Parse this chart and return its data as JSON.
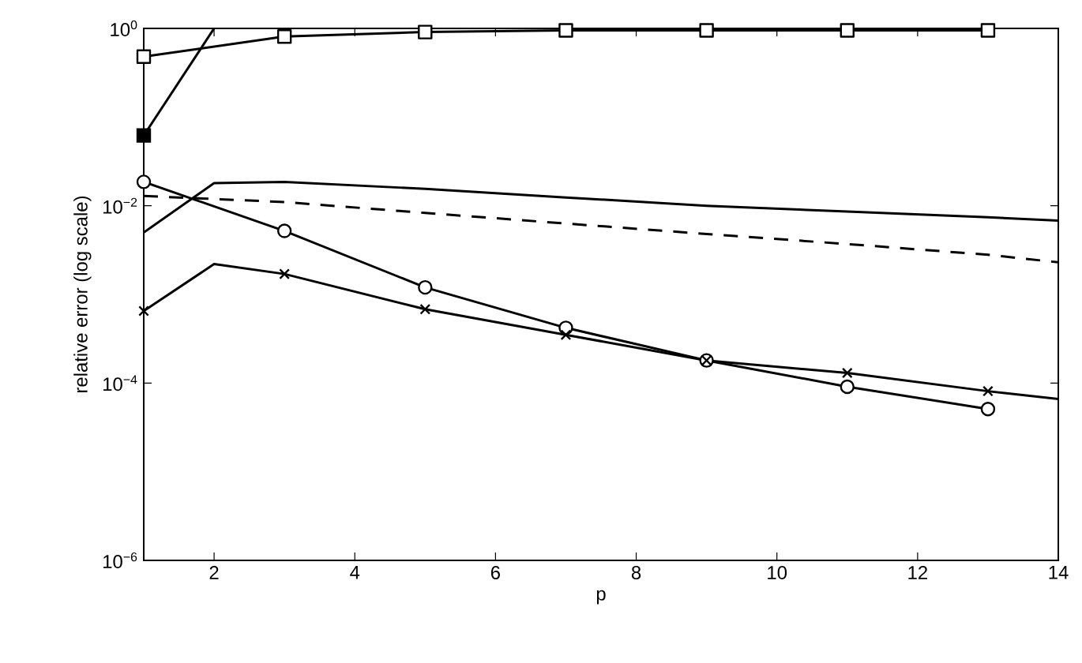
{
  "chart_data": {
    "type": "line",
    "xlabel": "p",
    "ylabel": "relative error (log scale)",
    "log": "y",
    "xlim": [
      1,
      14
    ],
    "xticks": [
      2,
      4,
      6,
      8,
      10,
      12,
      14
    ],
    "ylim": [
      1e-06,
      1
    ],
    "yticks": [
      {
        "value": 1e-06,
        "label": "10$^{−6}$"
      },
      {
        "value": 0.0001,
        "label": "10$^{−4}$"
      },
      {
        "value": 0.01,
        "label": "10$^{−2}$"
      },
      {
        "value": 1,
        "label": "10$^{0}$"
      }
    ],
    "series": [
      {
        "color": "#000000",
        "marker": "square",
        "x": [
          1,
          3,
          5,
          7,
          9,
          11,
          13
        ],
        "values": [
          0.48,
          0.81,
          0.91,
          0.95,
          0.95,
          0.95,
          0.95
        ]
      },
      {
        "color": "#000000",
        "marker": "none",
        "x": [
          1,
          2
        ],
        "values": [
          0.062,
          1
        ]
      },
      {
        "type": "scatter",
        "color": "#000000",
        "marker": "square",
        "x": [
          1
        ],
        "values": [
          0.062
        ]
      },
      {
        "color": "#000000",
        "marker": "none",
        "x": [
          1,
          2,
          3,
          5,
          7,
          9,
          11,
          13,
          14
        ],
        "values": [
          0.005,
          0.018,
          0.0186,
          0.0155,
          0.0124,
          0.01,
          0.0086,
          0.0074,
          0.0068
        ]
      },
      {
        "color": "#000000",
        "marker": "none",
        "line_style": "dashed",
        "x": [
          1,
          3,
          5,
          7,
          9,
          11,
          13,
          14
        ],
        "values": [
          0.0129,
          0.011,
          0.0083,
          0.0063,
          0.0048,
          0.0037,
          0.0028,
          0.0023
        ]
      },
      {
        "color": "#000000",
        "marker": "circle",
        "x": [
          1,
          3,
          5,
          7,
          9,
          11,
          13
        ],
        "values": [
          0.0186,
          0.0052,
          0.0012,
          0.00042,
          0.00018,
          9.1e-05,
          5.1e-05
        ]
      },
      {
        "color": "#000000",
        "marker": "none",
        "x": [
          1,
          2,
          3,
          5,
          7,
          9,
          11,
          13,
          14
        ],
        "values": [
          0.00065,
          0.0022,
          0.0017,
          0.00068,
          0.00035,
          0.00018,
          0.00013,
          8.1e-05,
          6.6e-05
        ]
      },
      {
        "type": "scatter",
        "color": "#000000",
        "marker": "cross",
        "x": [
          1,
          3,
          5,
          7,
          9,
          11,
          13
        ],
        "values": [
          0.00065,
          0.0017,
          0.00068,
          0.00035,
          0.00018,
          0.00013,
          8.1e-05
        ]
      }
    ]
  }
}
